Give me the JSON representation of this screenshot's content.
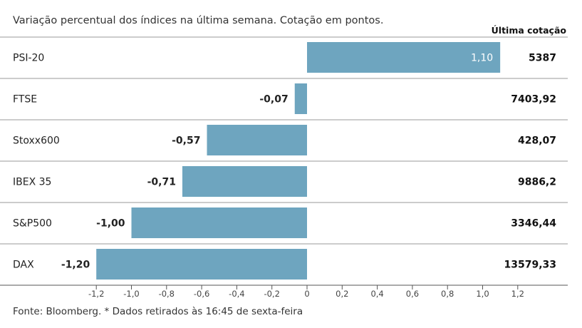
{
  "header": {
    "subtitle": "Variação percentual dos índices na última semana. Cotação em pontos.",
    "column_title": "Última cotação"
  },
  "footer": {
    "source": "Fonte: Bloomberg.  * Dados retirados às 16:45 de sexta-feira"
  },
  "chart_data": {
    "type": "bar",
    "orientation": "horizontal",
    "categories": [
      "PSI-20",
      "FTSE",
      "Stoxx600",
      "IBEX 35",
      "S&P500",
      "DAX"
    ],
    "values": [
      1.1,
      -0.07,
      -0.57,
      -0.71,
      -1.0,
      -1.2
    ],
    "value_labels": [
      "1,10",
      "-0,07",
      "-0,57",
      "-0,71",
      "-1,00",
      "-1,20"
    ],
    "last_quote": [
      "5387",
      "7403,92",
      "428,07",
      "9886,2",
      "3346,44",
      "13579,33"
    ],
    "xlim": [
      -1.2,
      1.2
    ],
    "xticks": [
      -1.2,
      -1.0,
      -0.8,
      -0.6,
      -0.4,
      -0.2,
      0,
      0.2,
      0.4,
      0.6,
      0.8,
      1.0,
      1.2
    ],
    "xtick_labels": [
      "-1,2",
      "-1,0",
      "-0,8",
      "-0,6",
      "-0,4",
      "-0,2",
      "0",
      "0,2",
      "0,4",
      "0,6",
      "0,8",
      "1,0",
      "1,2"
    ],
    "bar_color": "#6ea5bf",
    "grid": false
  }
}
